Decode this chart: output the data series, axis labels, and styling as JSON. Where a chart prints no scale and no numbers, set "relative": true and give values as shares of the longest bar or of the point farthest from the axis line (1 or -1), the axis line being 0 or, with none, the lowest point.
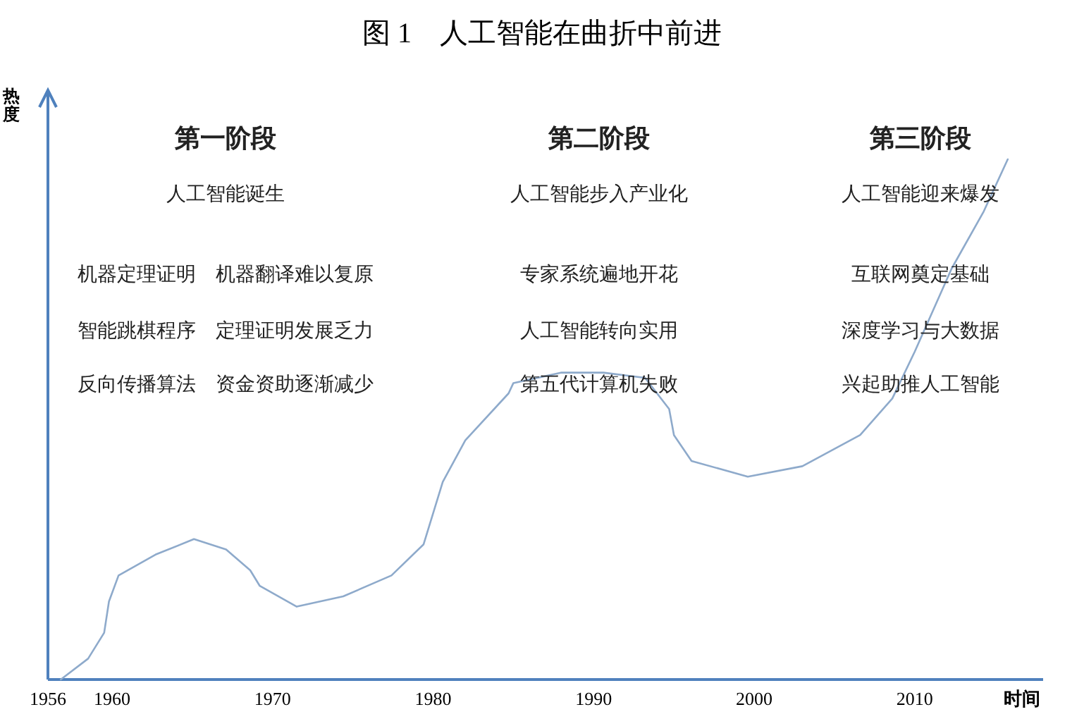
{
  "chart_data": {
    "type": "line",
    "relative": true,
    "title": "图 1　人工智能在曲折中前进",
    "xlabel": "时间",
    "ylabel": "热度",
    "x": [
      1956.8,
      1958.5,
      1959.5,
      1959.8,
      1960.4,
      1962.7,
      1965.1,
      1967.1,
      1968.6,
      1969.2,
      1971.5,
      1974.4,
      1977.4,
      1979.4,
      1980.6,
      1982.0,
      1984.7,
      1985.0,
      1988.0,
      1990.6,
      1993.2,
      1994.7,
      1995.0,
      1996.1,
      1999.6,
      2003.0,
      2006.6,
      2008.6,
      2010.0,
      2012.3,
      2014.3,
      2015.8
    ],
    "series": [
      {
        "color": "#8eaacb",
        "values": [
          0,
          0.04,
          0.09,
          0.15,
          0.2,
          0.24,
          0.27,
          0.25,
          0.21,
          0.18,
          0.14,
          0.16,
          0.2,
          0.26,
          0.38,
          0.46,
          0.55,
          0.57,
          0.59,
          0.59,
          0.58,
          0.52,
          0.47,
          0.42,
          0.39,
          0.41,
          0.47,
          0.54,
          0.63,
          0.79,
          0.9,
          1
        ]
      }
    ],
    "xlim": [
      1956,
      2018
    ],
    "xticks": [
      1956,
      1960,
      1970,
      1980,
      1990,
      2000,
      2010
    ],
    "marker": "none",
    "line_style": "solid",
    "annotations": [
      "第一阶段",
      "第二阶段",
      "第三阶段",
      "人工智能诞生",
      "人工智能步入产业化",
      "人工智能迎来爆发",
      "机器定理证明　机器翻译难以复原",
      "专家系统遍地开花",
      "互联网奠定基础",
      "智能跳棋程序　定理证明发展乏力",
      "人工智能转向实用",
      "深度学习与大数据",
      "反向传播算法　资金资助逐渐减少",
      "第五代计算机失败",
      "兴起助推人工智能"
    ]
  }
}
